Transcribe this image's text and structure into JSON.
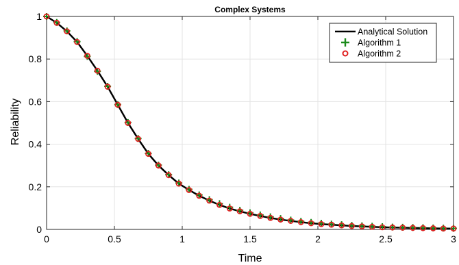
{
  "chart_data": {
    "type": "line",
    "title": "Complex Systems",
    "xlabel": "Time",
    "ylabel": "Reliability",
    "xlim": [
      0,
      3
    ],
    "ylim": [
      0,
      1
    ],
    "x_ticks": [
      0,
      0.5,
      1,
      1.5,
      2,
      2.5,
      3
    ],
    "x_tick_labels": [
      "0",
      "0.5",
      "1",
      "1.5",
      "2",
      "2.5",
      "3"
    ],
    "y_ticks": [
      0,
      0.2,
      0.4,
      0.6,
      0.8,
      1
    ],
    "y_tick_labels": [
      "0",
      "0.2",
      "0.4",
      "0.6",
      "0.8",
      "1"
    ],
    "grid": true,
    "legend_position": "top-right",
    "x": [
      0,
      0.075,
      0.15,
      0.225,
      0.3,
      0.375,
      0.45,
      0.525,
      0.6,
      0.675,
      0.75,
      0.825,
      0.9,
      0.975,
      1.05,
      1.125,
      1.2,
      1.275,
      1.35,
      1.425,
      1.5,
      1.575,
      1.65,
      1.725,
      1.8,
      1.875,
      1.95,
      2.025,
      2.1,
      2.175,
      2.25,
      2.325,
      2.4,
      2.475,
      2.55,
      2.625,
      2.7,
      2.775,
      2.85,
      2.925,
      3.0
    ],
    "series": [
      {
        "name": "Analytical Solution",
        "style": "line",
        "color": "#000000",
        "values": [
          1.0,
          0.97,
          0.93,
          0.88,
          0.815,
          0.745,
          0.67,
          0.585,
          0.5,
          0.425,
          0.355,
          0.3,
          0.255,
          0.215,
          0.185,
          0.158,
          0.135,
          0.115,
          0.098,
          0.085,
          0.073,
          0.063,
          0.054,
          0.046,
          0.04,
          0.034,
          0.029,
          0.025,
          0.022,
          0.019,
          0.016,
          0.014,
          0.012,
          0.01,
          0.009,
          0.008,
          0.007,
          0.006,
          0.005,
          0.004,
          0.004
        ]
      },
      {
        "name": "Algorithm 1",
        "style": "plus",
        "color": "#1a8a1a",
        "values": [
          1.0,
          0.972,
          0.932,
          0.882,
          0.812,
          0.742,
          0.672,
          0.586,
          0.502,
          0.427,
          0.357,
          0.302,
          0.257,
          0.218,
          0.188,
          0.162,
          0.14,
          0.121,
          0.104,
          0.09,
          0.078,
          0.068,
          0.059,
          0.051,
          0.044,
          0.038,
          0.033,
          0.029,
          0.025,
          0.022,
          0.019,
          0.017,
          0.015,
          0.013,
          0.011,
          0.01,
          0.009,
          0.008,
          0.007,
          0.006,
          0.005
        ]
      },
      {
        "name": "Algorithm 2",
        "style": "circle",
        "color": "#e02020",
        "values": [
          1.0,
          0.97,
          0.93,
          0.88,
          0.815,
          0.745,
          0.67,
          0.585,
          0.5,
          0.425,
          0.355,
          0.3,
          0.255,
          0.215,
          0.185,
          0.158,
          0.135,
          0.115,
          0.098,
          0.085,
          0.073,
          0.063,
          0.054,
          0.046,
          0.04,
          0.034,
          0.029,
          0.025,
          0.022,
          0.019,
          0.016,
          0.014,
          0.012,
          0.01,
          0.009,
          0.008,
          0.007,
          0.006,
          0.005,
          0.004,
          0.004
        ]
      }
    ]
  }
}
